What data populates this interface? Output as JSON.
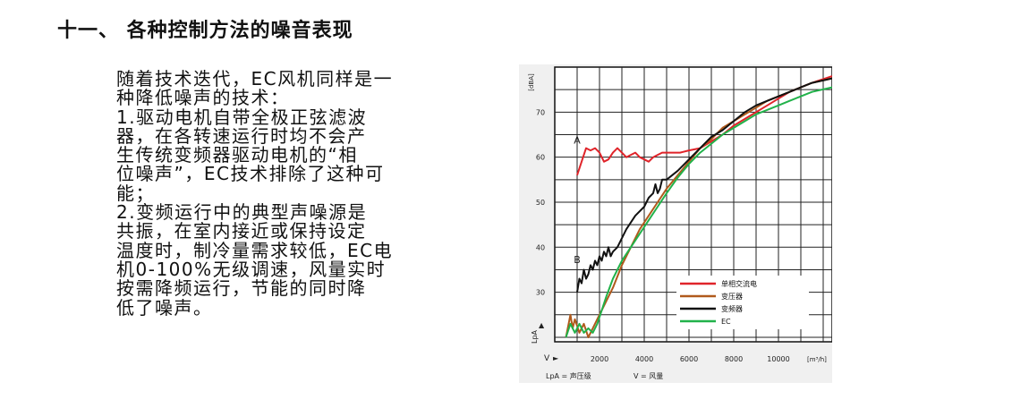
{
  "heading": {
    "title": "十一、 各种控制方法的噪音表现"
  },
  "paragraph": {
    "lines": [
      "随着技术迭代，EC风机同样是一",
      "种降低噪声的技术：",
      "1.驱动电机自带全极正弦滤波",
      "器，在各转速运行时均不会产",
      "生传统变频器驱动电机的“相",
      "位噪声”，EC技术排除了这种可",
      "能；",
      "2.变频运行中的典型声噪源是",
      "共振，在室内接近或保持设定",
      "温度时，制冷量需求较低，EC电",
      "机0-100%无级调速，风量实时",
      "按需降频运行，节能的同时降",
      "低了噪声。"
    ]
  },
  "chart_data": {
    "type": "line",
    "ylabel_unit": "[dBA]",
    "xlabel_unit": "[m³/h]",
    "x_symbol": "V",
    "y_symbol": "LpA",
    "x_axis_note": "V = 风量",
    "y_axis_note": "LpA = 声压级",
    "xlim": [
      0,
      12400
    ],
    "ylim": [
      19,
      80
    ],
    "x_ticks": [
      2000,
      4000,
      6000,
      8000,
      10000
    ],
    "y_ticks": [
      30,
      40,
      50,
      60,
      70
    ],
    "grid": true,
    "legend_position": "bottom-right",
    "annotations": [
      {
        "text": "A",
        "x": 850,
        "y": 63
      },
      {
        "text": "B",
        "x": 850,
        "y": 36.5
      }
    ],
    "series": [
      {
        "name": "单相交流电",
        "color": "#e0242a",
        "points": [
          [
            1000,
            56
          ],
          [
            1200,
            59
          ],
          [
            1400,
            62
          ],
          [
            1600,
            61.5
          ],
          [
            1800,
            62
          ],
          [
            2000,
            61
          ],
          [
            2200,
            59
          ],
          [
            2400,
            59.5
          ],
          [
            2600,
            61
          ],
          [
            2800,
            62
          ],
          [
            3000,
            61
          ],
          [
            3200,
            60
          ],
          [
            3400,
            60.5
          ],
          [
            3600,
            61
          ],
          [
            3800,
            60
          ],
          [
            4000,
            59.5
          ],
          [
            4200,
            59
          ],
          [
            4400,
            60
          ],
          [
            4600,
            60.5
          ],
          [
            4800,
            61
          ],
          [
            5200,
            61
          ],
          [
            5600,
            61
          ],
          [
            6000,
            61.5
          ],
          [
            6500,
            62
          ],
          [
            7000,
            63.5
          ],
          [
            7500,
            65
          ],
          [
            8000,
            67
          ],
          [
            8500,
            68.5
          ],
          [
            9000,
            70
          ],
          [
            9500,
            71.5
          ],
          [
            10000,
            73
          ],
          [
            10500,
            74.5
          ],
          [
            11000,
            75.5
          ],
          [
            11500,
            76.5
          ],
          [
            12400,
            78
          ]
        ]
      },
      {
        "name": "变压器",
        "color": "#b05a1c",
        "points": [
          [
            500,
            20
          ],
          [
            700,
            25
          ],
          [
            800,
            22
          ],
          [
            900,
            24
          ],
          [
            1100,
            21
          ],
          [
            1300,
            23
          ],
          [
            1500,
            20
          ],
          [
            1700,
            22
          ],
          [
            1900,
            24
          ],
          [
            2100,
            26
          ],
          [
            2300,
            28
          ],
          [
            2600,
            31
          ],
          [
            3000,
            36
          ],
          [
            3400,
            40
          ],
          [
            3800,
            44
          ],
          [
            4200,
            47
          ],
          [
            4600,
            50
          ],
          [
            5000,
            53
          ],
          [
            5500,
            56
          ],
          [
            6000,
            59
          ],
          [
            6500,
            62
          ],
          [
            7000,
            64
          ],
          [
            7500,
            66.5
          ],
          [
            8000,
            68
          ],
          [
            8500,
            69.5
          ],
          [
            9000,
            71
          ],
          [
            9500,
            72.5
          ],
          [
            10000,
            73.5
          ],
          [
            10500,
            74.5
          ],
          [
            11000,
            75.5
          ],
          [
            11500,
            76.5
          ],
          [
            12400,
            77.5
          ]
        ]
      },
      {
        "name": "变频器",
        "color": "#111111",
        "points": [
          [
            1000,
            30
          ],
          [
            1100,
            33
          ],
          [
            1200,
            32
          ],
          [
            1300,
            35
          ],
          [
            1400,
            33
          ],
          [
            1500,
            34
          ],
          [
            1600,
            36
          ],
          [
            1700,
            35
          ],
          [
            1800,
            37
          ],
          [
            1900,
            36
          ],
          [
            2000,
            38
          ],
          [
            2100,
            37
          ],
          [
            2200,
            39
          ],
          [
            2300,
            38
          ],
          [
            2400,
            40
          ],
          [
            2500,
            38
          ],
          [
            2600,
            39
          ],
          [
            2800,
            40
          ],
          [
            3200,
            44
          ],
          [
            3600,
            47
          ],
          [
            4000,
            49
          ],
          [
            4200,
            51
          ],
          [
            4400,
            52
          ],
          [
            4500,
            54
          ],
          [
            4600,
            52
          ],
          [
            4700,
            53
          ],
          [
            4800,
            55
          ],
          [
            5000,
            55
          ],
          [
            5500,
            57
          ],
          [
            6000,
            59.5
          ],
          [
            6500,
            62
          ],
          [
            7000,
            64.5
          ],
          [
            7500,
            66
          ],
          [
            8000,
            68
          ],
          [
            8500,
            70
          ],
          [
            9000,
            71.5
          ],
          [
            9500,
            72.5
          ],
          [
            10000,
            73.5
          ],
          [
            10500,
            74.5
          ],
          [
            11000,
            75.5
          ],
          [
            11500,
            76.5
          ],
          [
            12400,
            77.5
          ]
        ]
      },
      {
        "name": "EC",
        "color": "#21b24a",
        "points": [
          [
            500,
            20
          ],
          [
            700,
            23
          ],
          [
            900,
            21
          ],
          [
            1100,
            23
          ],
          [
            1300,
            21
          ],
          [
            1500,
            22
          ],
          [
            1700,
            21
          ],
          [
            1900,
            23
          ],
          [
            2100,
            26
          ],
          [
            2300,
            29
          ],
          [
            2600,
            33
          ],
          [
            3000,
            37
          ],
          [
            3400,
            40
          ],
          [
            3800,
            43
          ],
          [
            4200,
            46
          ],
          [
            4600,
            49
          ],
          [
            5000,
            52
          ],
          [
            5500,
            55.5
          ],
          [
            6000,
            58.5
          ],
          [
            6500,
            61
          ],
          [
            7000,
            63
          ],
          [
            7500,
            65
          ],
          [
            8000,
            66.5
          ],
          [
            8500,
            68
          ],
          [
            9000,
            69.5
          ],
          [
            9500,
            70.5
          ],
          [
            10000,
            71.5
          ],
          [
            10500,
            72.5
          ],
          [
            11000,
            73.5
          ],
          [
            11500,
            74.5
          ],
          [
            12400,
            75.5
          ]
        ]
      }
    ]
  }
}
